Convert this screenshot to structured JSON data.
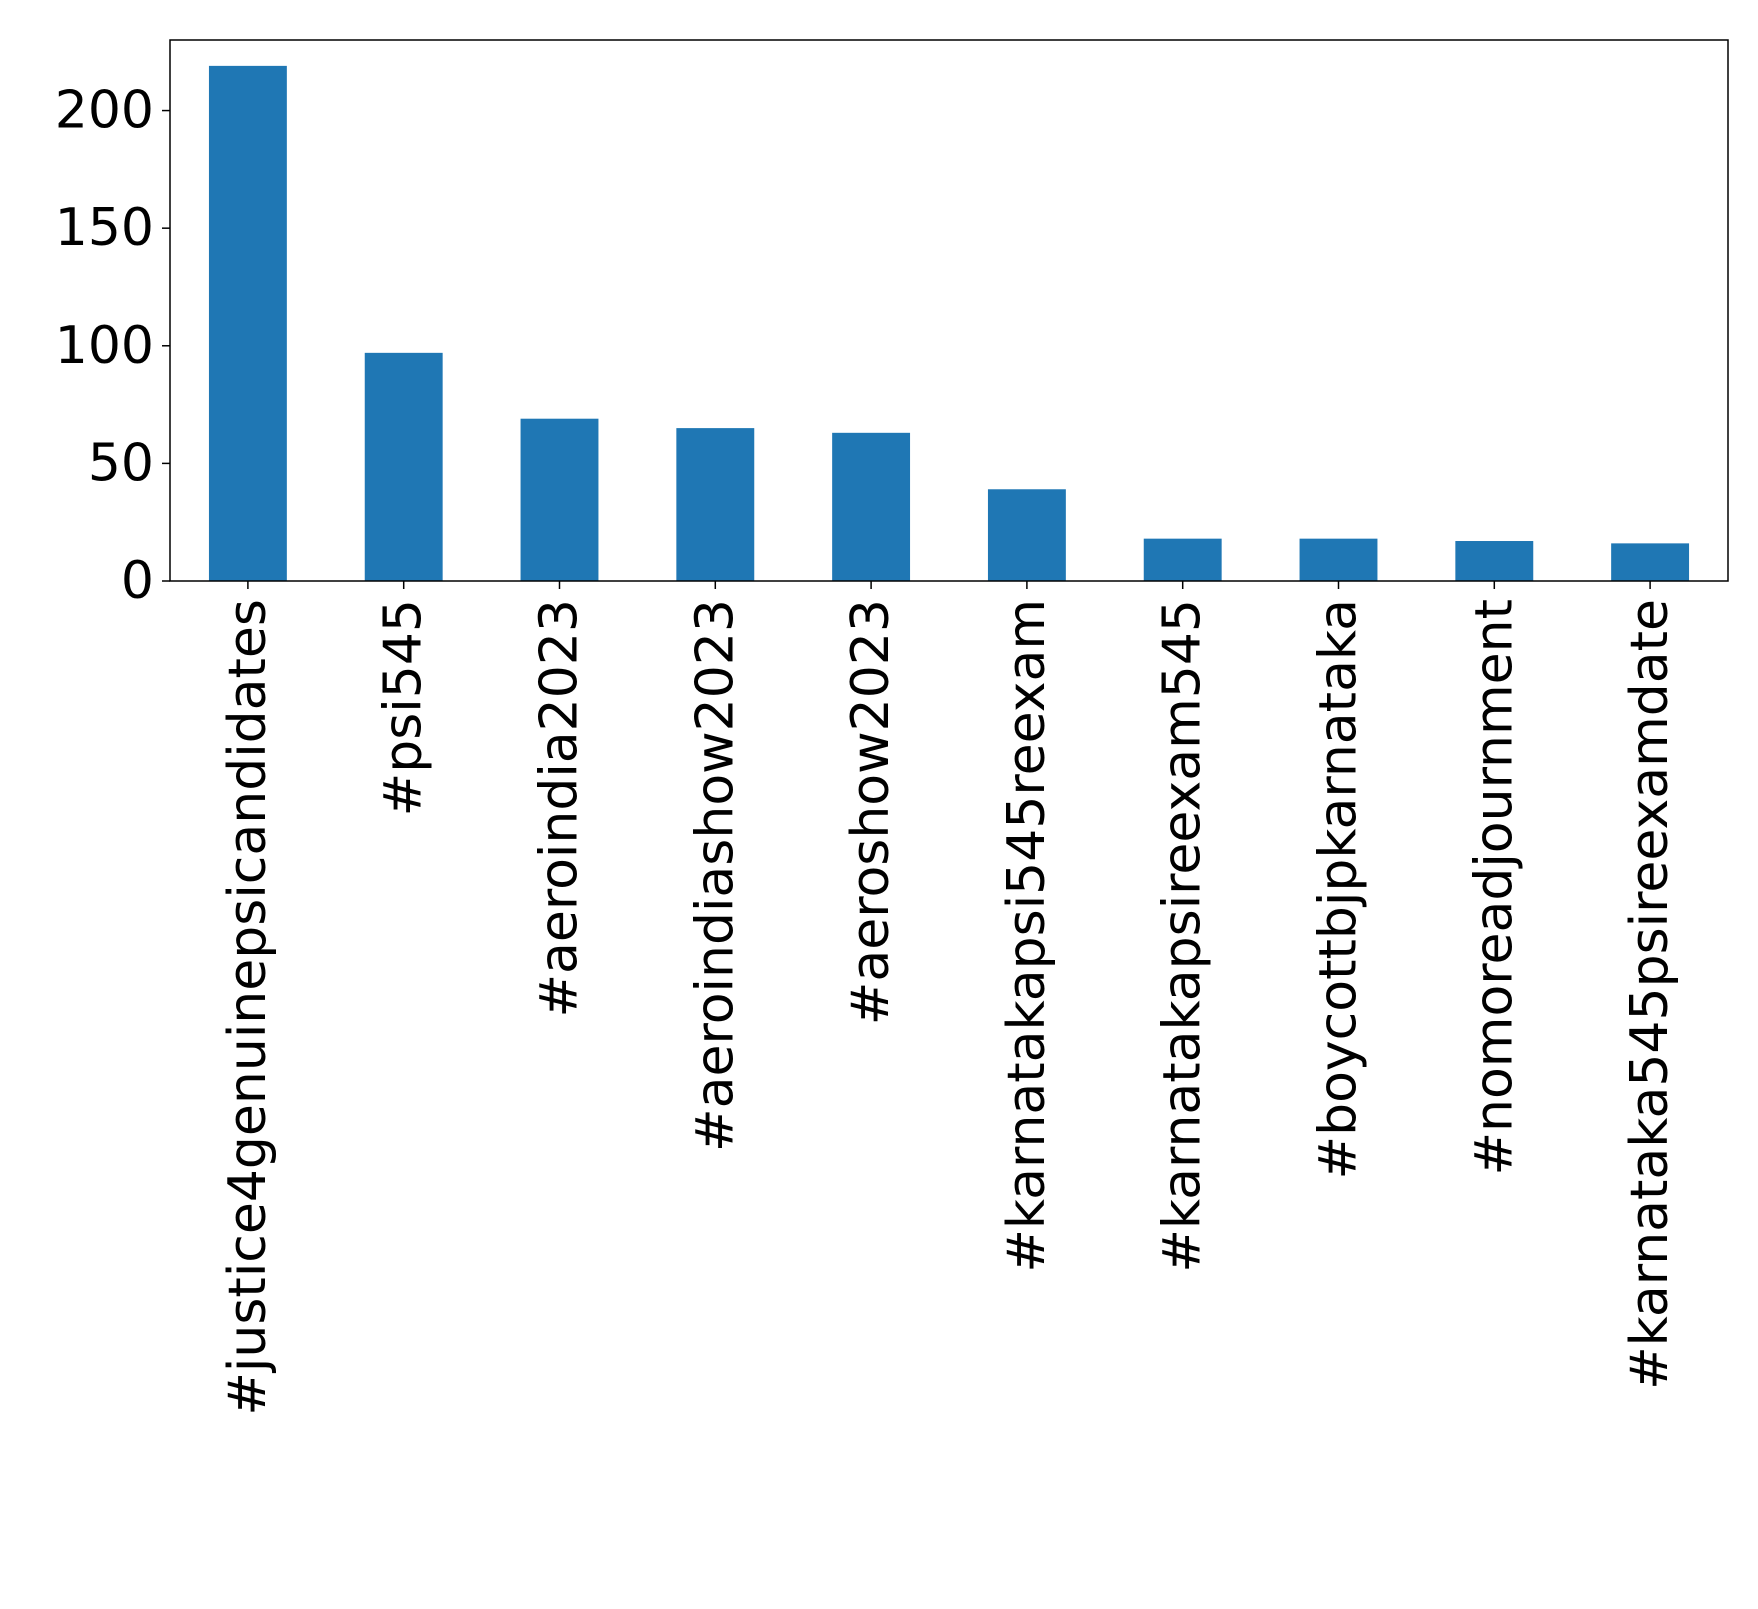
{
  "chart_data": {
    "type": "bar",
    "categories": [
      "#justice4genuinepsicandidates",
      "#psi545",
      "#aeroindia2023",
      "#aeroindiashow2023",
      "#aeroshow2023",
      "#karnatakapsi545reexam",
      "#karnatakapsireexam545",
      "#boycottbjpkarnataka",
      "#nomoreadjournment",
      "#karnataka545psireexamdate"
    ],
    "values": [
      219,
      97,
      69,
      65,
      63,
      39,
      18,
      18,
      17,
      16
    ],
    "yticks": [
      0,
      50,
      100,
      150,
      200
    ],
    "ylim": [
      0,
      230
    ],
    "title": "",
    "xlabel": "",
    "ylabel": "",
    "grid": false,
    "legend": "none",
    "bar_color": "#1f77b4"
  }
}
